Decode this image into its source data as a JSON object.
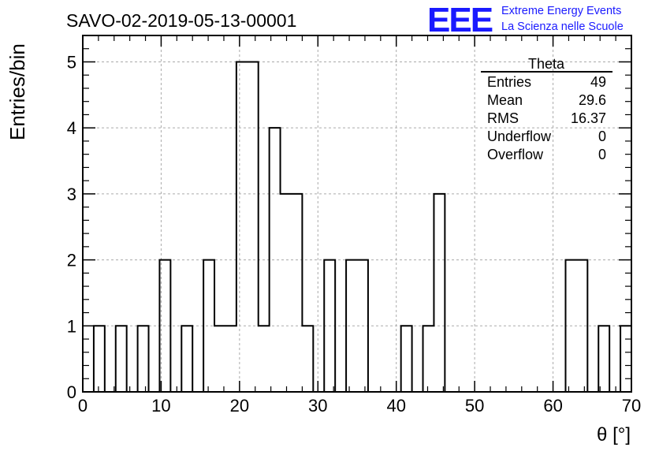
{
  "header": {
    "title": "SAVO-02-2019-05-13-00001",
    "logo_text": "EEE",
    "logo_line1": "Extreme Energy Events",
    "logo_line2": "La Scienza nelle Scuole",
    "logo_color": "#1a1aff"
  },
  "stats": {
    "title": "Theta",
    "rows": [
      {
        "label": "Entries",
        "value": "49"
      },
      {
        "label": "Mean",
        "value": "29.6"
      },
      {
        "label": "RMS",
        "value": "16.37"
      },
      {
        "label": "Underflow",
        "value": "0"
      },
      {
        "label": "Overflow",
        "value": "0"
      }
    ]
  },
  "chart_data": {
    "type": "histogram",
    "title": "SAVO-02-2019-05-13-00001",
    "xlabel": "θ [°]",
    "ylabel": "Entries/bin",
    "xlim": [
      0,
      70
    ],
    "ylim": [
      0,
      5.4
    ],
    "bin_width": 1.4,
    "xticks": [
      0,
      10,
      20,
      30,
      40,
      50,
      60,
      70
    ],
    "yticks": [
      0,
      1,
      2,
      3,
      4,
      5
    ],
    "grid": true,
    "bins": [
      {
        "x": 0.0,
        "count": 0
      },
      {
        "x": 1.4,
        "count": 1
      },
      {
        "x": 2.8,
        "count": 0
      },
      {
        "x": 4.2,
        "count": 1
      },
      {
        "x": 5.6,
        "count": 0
      },
      {
        "x": 7.0,
        "count": 1
      },
      {
        "x": 8.4,
        "count": 0
      },
      {
        "x": 9.8,
        "count": 2
      },
      {
        "x": 11.2,
        "count": 0
      },
      {
        "x": 12.6,
        "count": 1
      },
      {
        "x": 14.0,
        "count": 0
      },
      {
        "x": 15.4,
        "count": 2
      },
      {
        "x": 16.8,
        "count": 1
      },
      {
        "x": 18.2,
        "count": 1
      },
      {
        "x": 19.6,
        "count": 5
      },
      {
        "x": 21.0,
        "count": 5
      },
      {
        "x": 22.4,
        "count": 1
      },
      {
        "x": 23.8,
        "count": 4
      },
      {
        "x": 25.2,
        "count": 3
      },
      {
        "x": 26.6,
        "count": 3
      },
      {
        "x": 28.0,
        "count": 1
      },
      {
        "x": 29.4,
        "count": 0
      },
      {
        "x": 30.8,
        "count": 2
      },
      {
        "x": 32.2,
        "count": 0
      },
      {
        "x": 33.6,
        "count": 2
      },
      {
        "x": 35.0,
        "count": 2
      },
      {
        "x": 36.4,
        "count": 0
      },
      {
        "x": 37.8,
        "count": 0
      },
      {
        "x": 39.2,
        "count": 0
      },
      {
        "x": 40.6,
        "count": 1
      },
      {
        "x": 42.0,
        "count": 0
      },
      {
        "x": 43.4,
        "count": 1
      },
      {
        "x": 44.8,
        "count": 3
      },
      {
        "x": 46.2,
        "count": 0
      },
      {
        "x": 47.6,
        "count": 0
      },
      {
        "x": 49.0,
        "count": 0
      },
      {
        "x": 50.4,
        "count": 0
      },
      {
        "x": 51.8,
        "count": 0
      },
      {
        "x": 53.2,
        "count": 0
      },
      {
        "x": 54.6,
        "count": 0
      },
      {
        "x": 56.0,
        "count": 0
      },
      {
        "x": 57.4,
        "count": 0
      },
      {
        "x": 58.8,
        "count": 0
      },
      {
        "x": 60.2,
        "count": 0
      },
      {
        "x": 61.6,
        "count": 2
      },
      {
        "x": 63.0,
        "count": 2
      },
      {
        "x": 64.4,
        "count": 0
      },
      {
        "x": 65.8,
        "count": 1
      },
      {
        "x": 67.2,
        "count": 0
      },
      {
        "x": 68.6,
        "count": 1
      }
    ]
  }
}
